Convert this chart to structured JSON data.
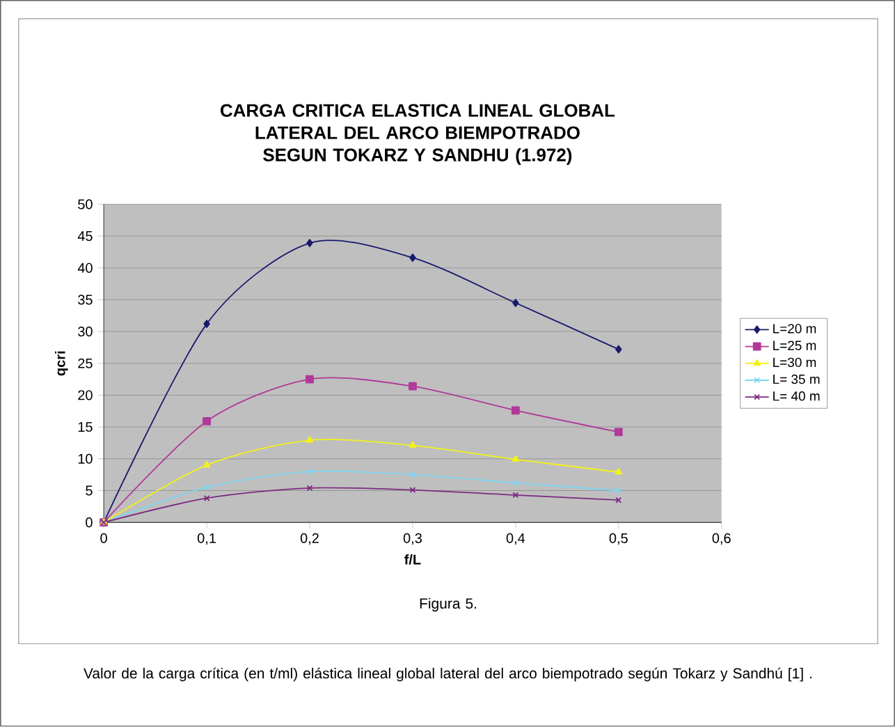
{
  "chart_data": {
    "type": "line",
    "title": "CARGA CRITICA ELASTICA LINEAL GLOBAL LATERAL DEL ARCO BIEMPOTRADO SEGUN TOKARZ Y SANDHU (1.972)",
    "xlabel": "f/L",
    "ylabel": "qcri",
    "x": [
      0,
      0.1,
      0.2,
      0.3,
      0.4,
      0.5
    ],
    "series": [
      {
        "name": "L=20 m",
        "color": "#1a1a6e",
        "marker": "diamond",
        "values": [
          0,
          31.2,
          43.9,
          41.6,
          34.5,
          27.2
        ]
      },
      {
        "name": "L=25 m",
        "color": "#b03a9a",
        "marker": "square",
        "values": [
          0,
          15.9,
          22.5,
          21.4,
          17.6,
          14.2
        ]
      },
      {
        "name": "L=30 m",
        "color": "#f2f21a",
        "marker": "triangle",
        "values": [
          0,
          9.0,
          12.9,
          12.1,
          9.9,
          7.9
        ]
      },
      {
        "name": "L= 35 m",
        "color": "#7fd4f0",
        "marker": "cross",
        "values": [
          0,
          5.5,
          8.0,
          7.5,
          6.2,
          5.0
        ]
      },
      {
        "name": "L= 40 m",
        "color": "#7a2a80",
        "marker": "cross",
        "values": [
          0,
          3.8,
          5.4,
          5.1,
          4.3,
          3.5
        ]
      }
    ],
    "xlim": [
      0,
      0.6
    ],
    "ylim": [
      0,
      50
    ],
    "xticks": [
      0,
      {
        "value": 0.1,
        "label": "0,1"
      },
      {
        "value": 0.2,
        "label": "0,2"
      },
      {
        "value": 0.3,
        "label": "0,3"
      },
      {
        "value": 0.4,
        "label": "0,4"
      },
      {
        "value": 0.5,
        "label": "0,5"
      },
      {
        "value": 0.6,
        "label": "0,6"
      }
    ],
    "yticks": [
      0,
      5,
      10,
      15,
      20,
      25,
      30,
      35,
      40,
      45,
      50
    ],
    "grid": "y",
    "legend": "right",
    "line_style": "solid",
    "annotations": [
      "Figura 5.",
      "Valor de la carga crítica (en t/ml) elástica lineal global lateral del arco biempotrado según Tokarz y Sandhú [1] ."
    ]
  }
}
